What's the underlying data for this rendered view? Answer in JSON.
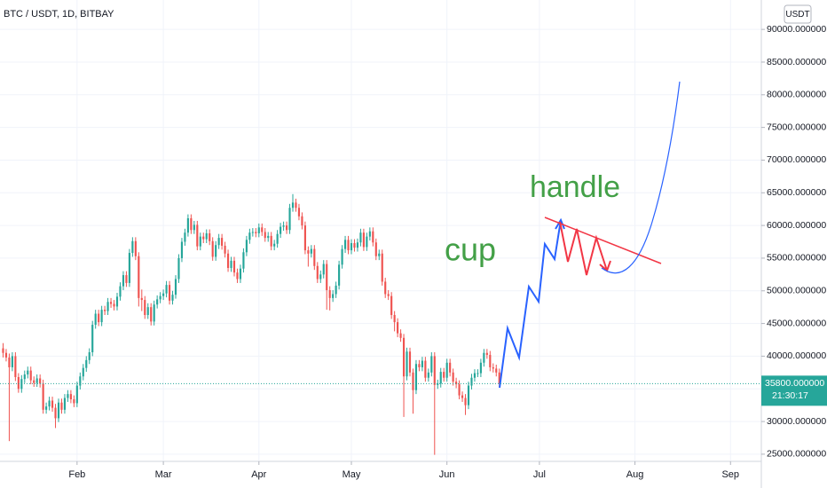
{
  "chart_data": {
    "type": "candlestick",
    "title": "BTC / USDT, 1D, BITBAY",
    "currency_button": "USDT",
    "annotations": [
      "cup",
      "handle"
    ],
    "last_price": 35800,
    "last_price_label": "35800.000000",
    "countdown": "21:30:17",
    "up_color": "#26a69a",
    "down_color": "#ef5350",
    "grid": true,
    "xlim": [
      -1,
      246
    ],
    "ylim": [
      23900,
      94500
    ],
    "xticks": [
      {
        "value": 24,
        "label": "Feb"
      },
      {
        "value": 52,
        "label": "Mar"
      },
      {
        "value": 83,
        "label": "Apr"
      },
      {
        "value": 113,
        "label": "May"
      },
      {
        "value": 144,
        "label": "Jun"
      },
      {
        "value": 174,
        "label": "Jul"
      },
      {
        "value": 205,
        "label": "Aug"
      },
      {
        "value": 236,
        "label": "Sep"
      }
    ],
    "yticks": [
      {
        "value": 25000,
        "label": "25000.000000"
      },
      {
        "value": 30000,
        "label": "30000.000000"
      },
      {
        "value": 35000,
        "label": "35000.000000"
      },
      {
        "value": 40000,
        "label": "40000.000000"
      },
      {
        "value": 45000,
        "label": "45000.000000"
      },
      {
        "value": 50000,
        "label": "50000.000000"
      },
      {
        "value": 55000,
        "label": "55000.000000"
      },
      {
        "value": 60000,
        "label": "60000.000000"
      },
      {
        "value": 65000,
        "label": "65000.000000"
      },
      {
        "value": 70000,
        "label": "70000.000000"
      },
      {
        "value": 75000,
        "label": "75000.000000"
      },
      {
        "value": 80000,
        "label": "80000.000000"
      },
      {
        "value": 85000,
        "label": "85000.000000"
      },
      {
        "value": 90000,
        "label": "90000.000000"
      }
    ],
    "x": [
      0,
      1,
      2,
      3,
      4,
      5,
      6,
      7,
      8,
      9,
      10,
      11,
      12,
      13,
      14,
      15,
      16,
      17,
      18,
      19,
      20,
      21,
      22,
      23,
      24,
      25,
      26,
      27,
      28,
      29,
      30,
      31,
      32,
      33,
      34,
      35,
      36,
      37,
      38,
      39,
      40,
      41,
      42,
      43,
      44,
      45,
      46,
      47,
      48,
      49,
      50,
      51,
      52,
      53,
      54,
      55,
      56,
      57,
      58,
      59,
      60,
      61,
      62,
      63,
      64,
      65,
      66,
      67,
      68,
      69,
      70,
      71,
      72,
      73,
      74,
      75,
      76,
      77,
      78,
      79,
      80,
      81,
      82,
      83,
      84,
      85,
      86,
      87,
      88,
      89,
      90,
      91,
      92,
      93,
      94,
      95,
      96,
      97,
      98,
      99,
      100,
      101,
      102,
      103,
      104,
      105,
      106,
      107,
      108,
      109,
      110,
      111,
      112,
      113,
      114,
      115,
      116,
      117,
      118,
      119,
      120,
      121,
      122,
      123,
      124,
      125,
      126,
      127,
      128,
      129,
      130,
      131,
      132,
      133,
      134,
      135,
      136,
      137,
      138,
      139,
      140,
      141,
      142,
      143,
      144,
      145,
      146,
      147,
      148,
      149,
      150,
      151,
      152,
      153,
      154,
      155,
      156,
      157,
      158,
      159,
      160,
      161
    ],
    "open": [
      41200,
      40500,
      39800,
      38300,
      40000,
      36800,
      35000,
      36500,
      37200,
      37800,
      36300,
      35900,
      36600,
      35800,
      31800,
      32300,
      33200,
      32100,
      30500,
      32900,
      31800,
      33600,
      34200,
      33400,
      32800,
      35500,
      36900,
      38200,
      39400,
      40600,
      44800,
      46500,
      45200,
      47100,
      46900,
      48300,
      48000,
      47600,
      49100,
      50700,
      52400,
      51200,
      55800,
      57600,
      55300,
      48900,
      48600,
      46300,
      47500,
      45300,
      47900,
      48700,
      49200,
      49600,
      50900,
      48500,
      49400,
      51800,
      55000,
      57500,
      58900,
      61100,
      59300,
      60100,
      56800,
      58300,
      57900,
      58800,
      57600,
      55200,
      57000,
      58100,
      56900,
      55700,
      53500,
      54600,
      52800,
      51800,
      53400,
      55900,
      57800,
      58900,
      59000,
      58800,
      59700,
      59000,
      58100,
      58400,
      56800,
      57200,
      58700,
      59800,
      60000,
      59300,
      62700,
      63500,
      62700,
      61400,
      60000,
      56200,
      55700,
      56400,
      53800,
      51800,
      52500,
      54100,
      50100,
      48900,
      49500,
      50800,
      54000,
      56400,
      57800,
      56200,
      57300,
      56600,
      57400,
      58900,
      56700,
      58300,
      59100,
      57400,
      55300,
      55700,
      51400,
      49500,
      49200,
      46300,
      45200,
      43500,
      42800,
      36900,
      40700,
      37500,
      34800,
      38800,
      38300,
      39300,
      36700,
      37500,
      40000,
      35600,
      35800,
      37600,
      36700,
      39000,
      37500,
      36100,
      35700,
      34000,
      33600,
      32500,
      35500,
      36700,
      37400,
      37400,
      39000,
      40500,
      40200,
      38300,
      38100,
      37500
    ],
    "high": [
      42000,
      41100,
      40400,
      40600,
      40600,
      37400,
      37100,
      37800,
      38400,
      38400,
      36900,
      37200,
      37200,
      36400,
      32900,
      33800,
      33800,
      32700,
      33500,
      33500,
      34200,
      34800,
      34800,
      34000,
      36100,
      37500,
      38800,
      40000,
      41200,
      45400,
      47100,
      47100,
      47700,
      47700,
      48900,
      48900,
      48600,
      49700,
      51300,
      53000,
      53000,
      56400,
      58200,
      58200,
      55900,
      50200,
      49200,
      48100,
      48100,
      48500,
      49300,
      49800,
      50200,
      51500,
      51500,
      50000,
      52400,
      55600,
      58100,
      59500,
      61700,
      61700,
      60700,
      60700,
      58900,
      58900,
      59400,
      59400,
      58200,
      57600,
      58700,
      58700,
      57500,
      56300,
      55200,
      55200,
      53400,
      54000,
      56500,
      58400,
      59500,
      59600,
      59600,
      60300,
      60300,
      59600,
      59000,
      59000,
      57800,
      59300,
      60400,
      60600,
      60600,
      63300,
      64800,
      64100,
      63300,
      62000,
      60600,
      56800,
      57000,
      57000,
      54400,
      53100,
      54700,
      54700,
      50700,
      50100,
      51400,
      54600,
      57000,
      58400,
      58400,
      57900,
      57900,
      58000,
      59500,
      59500,
      58900,
      59700,
      59700,
      58000,
      56300,
      56300,
      52000,
      50100,
      49800,
      46900,
      45800,
      44100,
      43400,
      41300,
      41300,
      38100,
      39400,
      39400,
      39900,
      39900,
      38100,
      40600,
      40600,
      36400,
      38200,
      38200,
      39600,
      39600,
      38100,
      36700,
      36300,
      34600,
      34200,
      36100,
      37300,
      38000,
      38000,
      39600,
      41100,
      41100,
      40800,
      38900,
      38700,
      38100
    ],
    "low": [
      39800,
      39200,
      27000,
      37700,
      36200,
      34400,
      34400,
      35900,
      36600,
      35700,
      35300,
      35300,
      35200,
      31200,
      31200,
      31700,
      31500,
      29000,
      29900,
      31200,
      31200,
      33000,
      32800,
      32200,
      32200,
      34900,
      36300,
      37600,
      38800,
      40000,
      44200,
      44600,
      44600,
      46300,
      46300,
      47400,
      47000,
      47000,
      48500,
      50100,
      50600,
      50600,
      55200,
      54700,
      47600,
      46900,
      45700,
      45700,
      44700,
      44700,
      47300,
      48100,
      48600,
      49000,
      47900,
      47900,
      48800,
      51200,
      54400,
      56900,
      58300,
      58700,
      58700,
      56200,
      56200,
      57300,
      57300,
      57000,
      54600,
      54600,
      56400,
      56300,
      55100,
      52900,
      52900,
      52200,
      51200,
      51200,
      52800,
      55300,
      57200,
      58300,
      58200,
      58200,
      58400,
      57500,
      57500,
      56200,
      56200,
      56600,
      58100,
      59200,
      58700,
      58700,
      62100,
      62100,
      60800,
      59400,
      55600,
      53700,
      55100,
      53200,
      51200,
      51200,
      51900,
      47100,
      47000,
      48300,
      48900,
      50200,
      53400,
      55800,
      55600,
      55600,
      56000,
      56000,
      56800,
      56100,
      56100,
      57700,
      56800,
      54700,
      54700,
      50800,
      48900,
      48600,
      45700,
      43800,
      42900,
      42200,
      30700,
      36300,
      36900,
      31200,
      34200,
      37700,
      37700,
      36100,
      36100,
      36900,
      24900,
      35000,
      35200,
      36100,
      36100,
      36900,
      35500,
      35100,
      33400,
      33000,
      31000,
      31900,
      34900,
      36100,
      36800,
      36800,
      38400,
      39600,
      37700,
      37500,
      36900,
      35200
    ],
    "close": [
      40500,
      39800,
      38300,
      40000,
      36800,
      35000,
      36500,
      37200,
      37800,
      36300,
      35900,
      36600,
      35800,
      31800,
      32300,
      33200,
      32100,
      30500,
      32900,
      31800,
      33600,
      34200,
      33400,
      32800,
      35500,
      36900,
      38200,
      39400,
      40600,
      44800,
      46500,
      45200,
      47100,
      46900,
      48300,
      48000,
      47600,
      49100,
      50700,
      52400,
      51200,
      55800,
      57600,
      55300,
      48900,
      48600,
      46300,
      47500,
      45300,
      47900,
      48700,
      49200,
      49600,
      50900,
      48500,
      49400,
      51800,
      55000,
      57500,
      58900,
      61100,
      59300,
      60100,
      56800,
      58300,
      57900,
      58800,
      57600,
      55200,
      57000,
      58100,
      56900,
      55700,
      53500,
      54600,
      52800,
      51800,
      53400,
      55900,
      57800,
      58900,
      59000,
      58800,
      59700,
      59000,
      58100,
      58400,
      56800,
      57200,
      58700,
      59800,
      60000,
      59300,
      62700,
      63500,
      62700,
      61400,
      60000,
      56200,
      55700,
      56400,
      53800,
      51800,
      52500,
      54100,
      50100,
      48900,
      49500,
      50800,
      54000,
      56400,
      57800,
      56200,
      57300,
      56600,
      57400,
      58900,
      56700,
      58300,
      59100,
      57400,
      55300,
      55700,
      51400,
      49500,
      49200,
      46300,
      45200,
      43500,
      42800,
      36900,
      40700,
      37500,
      34800,
      38800,
      38300,
      39300,
      36700,
      37500,
      40000,
      35600,
      35800,
      37600,
      36700,
      39000,
      37500,
      36100,
      35700,
      34000,
      33600,
      32500,
      35500,
      36700,
      37400,
      37400,
      39000,
      40500,
      40200,
      38300,
      38100,
      37500,
      35800
    ]
  }
}
